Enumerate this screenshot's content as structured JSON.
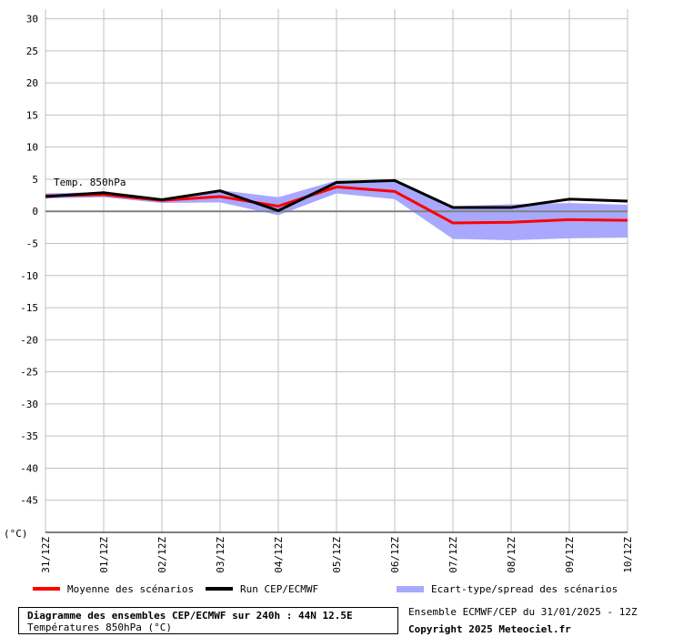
{
  "chart_data": {
    "type": "line",
    "annotation": "Temp. 850hPa",
    "unit_label": "(°C)",
    "x": [
      "31/12Z",
      "01/12Z",
      "02/12Z",
      "03/12Z",
      "04/12Z",
      "05/12Z",
      "06/12Z",
      "07/12Z",
      "08/12Z",
      "09/12Z",
      "10/12Z"
    ],
    "y_ticks": [
      30,
      25,
      20,
      15,
      10,
      5,
      0,
      -5,
      -10,
      -15,
      -20,
      -25,
      -30,
      -35,
      -40,
      -45
    ],
    "ylim": [
      -50,
      31.5
    ],
    "grid": true,
    "legend_position": "bottom",
    "series": [
      {
        "name": "Moyenne des scénarios",
        "color": "#ff0000",
        "values": [
          2.4,
          2.6,
          1.7,
          2.3,
          0.8,
          3.8,
          3.1,
          -1.8,
          -1.7,
          -1.3,
          -1.4
        ]
      },
      {
        "name": "Run CEP/ECMWF",
        "color": "#000000",
        "values": [
          2.3,
          2.9,
          1.8,
          3.2,
          0.1,
          4.5,
          4.8,
          0.6,
          0.6,
          1.9,
          1.6
        ]
      }
    ],
    "band": {
      "name": "Ecart-type/spread des scénarios",
      "color": "#a8a8ff",
      "upper": [
        2.8,
        3.0,
        2.0,
        3.3,
        2.2,
        4.8,
        4.6,
        0.8,
        1.1,
        1.3,
        1.0
      ],
      "lower": [
        2.0,
        2.2,
        1.3,
        1.4,
        -0.6,
        2.8,
        1.9,
        -4.3,
        -4.5,
        -4.2,
        -4.1
      ]
    }
  },
  "footer": {
    "title": "Diagramme des ensembles CEP/ECMWF sur 240h : 44N 12.5E",
    "subtitle": "Températures 850hPa (°C)",
    "run_info": "Ensemble ECMWF/CEP du 31/01/2025 - 12Z",
    "copyright": "Copyright 2025 Meteociel.fr"
  }
}
